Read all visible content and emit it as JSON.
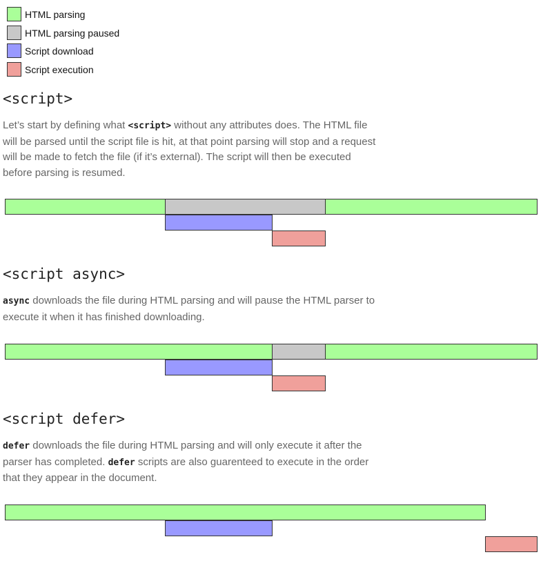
{
  "legend": [
    "HTML parsing",
    "HTML parsing paused",
    "Script download",
    "Script execution"
  ],
  "sections": [
    {
      "heading": "<script>",
      "paragraph": [
        "Let’s start by defining what ",
        "<script>",
        " without any attributes does. The HTML file will be parsed until the script file is hit, at that point parsing will stop and a request will be made to fetch the file (if it’s external). The script will then be executed before parsing is resumed."
      ]
    },
    {
      "heading": "<script async>",
      "paragraph": [
        "async",
        " downloads the file during HTML parsing and will pause the HTML parser to execute it when it has finished downloading."
      ]
    },
    {
      "heading": "<script defer>",
      "paragraph": [
        "defer",
        " downloads the file during HTML parsing and will only execute it after the parser has completed. ",
        "defer",
        " scripts are also guarenteed to execute in the order that they appear in the document."
      ]
    }
  ]
}
